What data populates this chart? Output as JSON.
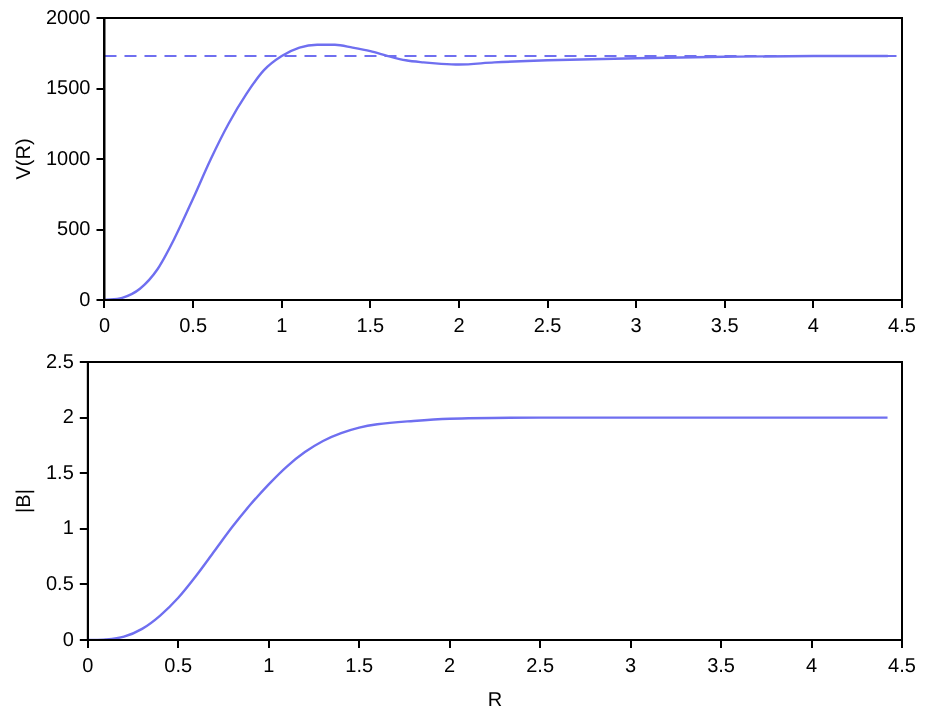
{
  "chart_data": [
    {
      "type": "line",
      "ylabel": "V(R)",
      "x": [
        0,
        0.1,
        0.2,
        0.3,
        0.4,
        0.5,
        0.6,
        0.7,
        0.8,
        0.9,
        1.0,
        1.1,
        1.2,
        1.3,
        1.4,
        1.5,
        1.6,
        1.7,
        1.8,
        1.9,
        2.0,
        2.2,
        2.5,
        3.0,
        3.5,
        4.0,
        4.42
      ],
      "series": [
        {
          "color": "#6f6ff0",
          "values": [
            0,
            15,
            80,
            220,
            450,
            720,
            1000,
            1250,
            1460,
            1630,
            1730,
            1790,
            1810,
            1810,
            1790,
            1765,
            1730,
            1700,
            1685,
            1675,
            1670,
            1685,
            1700,
            1715,
            1725,
            1730,
            1730
          ]
        }
      ],
      "xlim": [
        0,
        4.5
      ],
      "xticks": [
        0,
        0.5,
        1,
        1.5,
        2,
        2.5,
        3,
        3.5,
        4,
        4.5
      ],
      "ylim": [
        0,
        2000
      ],
      "yticks": [
        0,
        500,
        1000,
        1500,
        2000
      ],
      "ref_lines": [
        {
          "axis": "y",
          "value": 1730,
          "color": "#6f6ff0",
          "line_style": "dashed"
        }
      ],
      "line_style": "solid"
    },
    {
      "type": "line",
      "ylabel": "|B|",
      "xlabel": "R",
      "x": [
        0,
        0.1,
        0.2,
        0.3,
        0.4,
        0.5,
        0.6,
        0.7,
        0.8,
        0.9,
        1.0,
        1.1,
        1.2,
        1.3,
        1.4,
        1.5,
        1.6,
        1.8,
        2.0,
        2.5,
        3.0,
        4.42
      ],
      "series": [
        {
          "color": "#6f6ff0",
          "values": [
            0,
            0.005,
            0.03,
            0.1,
            0.22,
            0.38,
            0.58,
            0.8,
            1.02,
            1.22,
            1.4,
            1.56,
            1.69,
            1.79,
            1.86,
            1.91,
            1.94,
            1.97,
            1.99,
            2.0,
            2.0,
            2.0
          ]
        }
      ],
      "xlim": [
        0,
        4.5
      ],
      "xticks": [
        0,
        0.5,
        1,
        1.5,
        2,
        2.5,
        3,
        3.5,
        4,
        4.5
      ],
      "ylim": [
        0,
        2.5
      ],
      "yticks": [
        0,
        0.5,
        1,
        1.5,
        2,
        2.5
      ],
      "line_style": "solid"
    }
  ]
}
